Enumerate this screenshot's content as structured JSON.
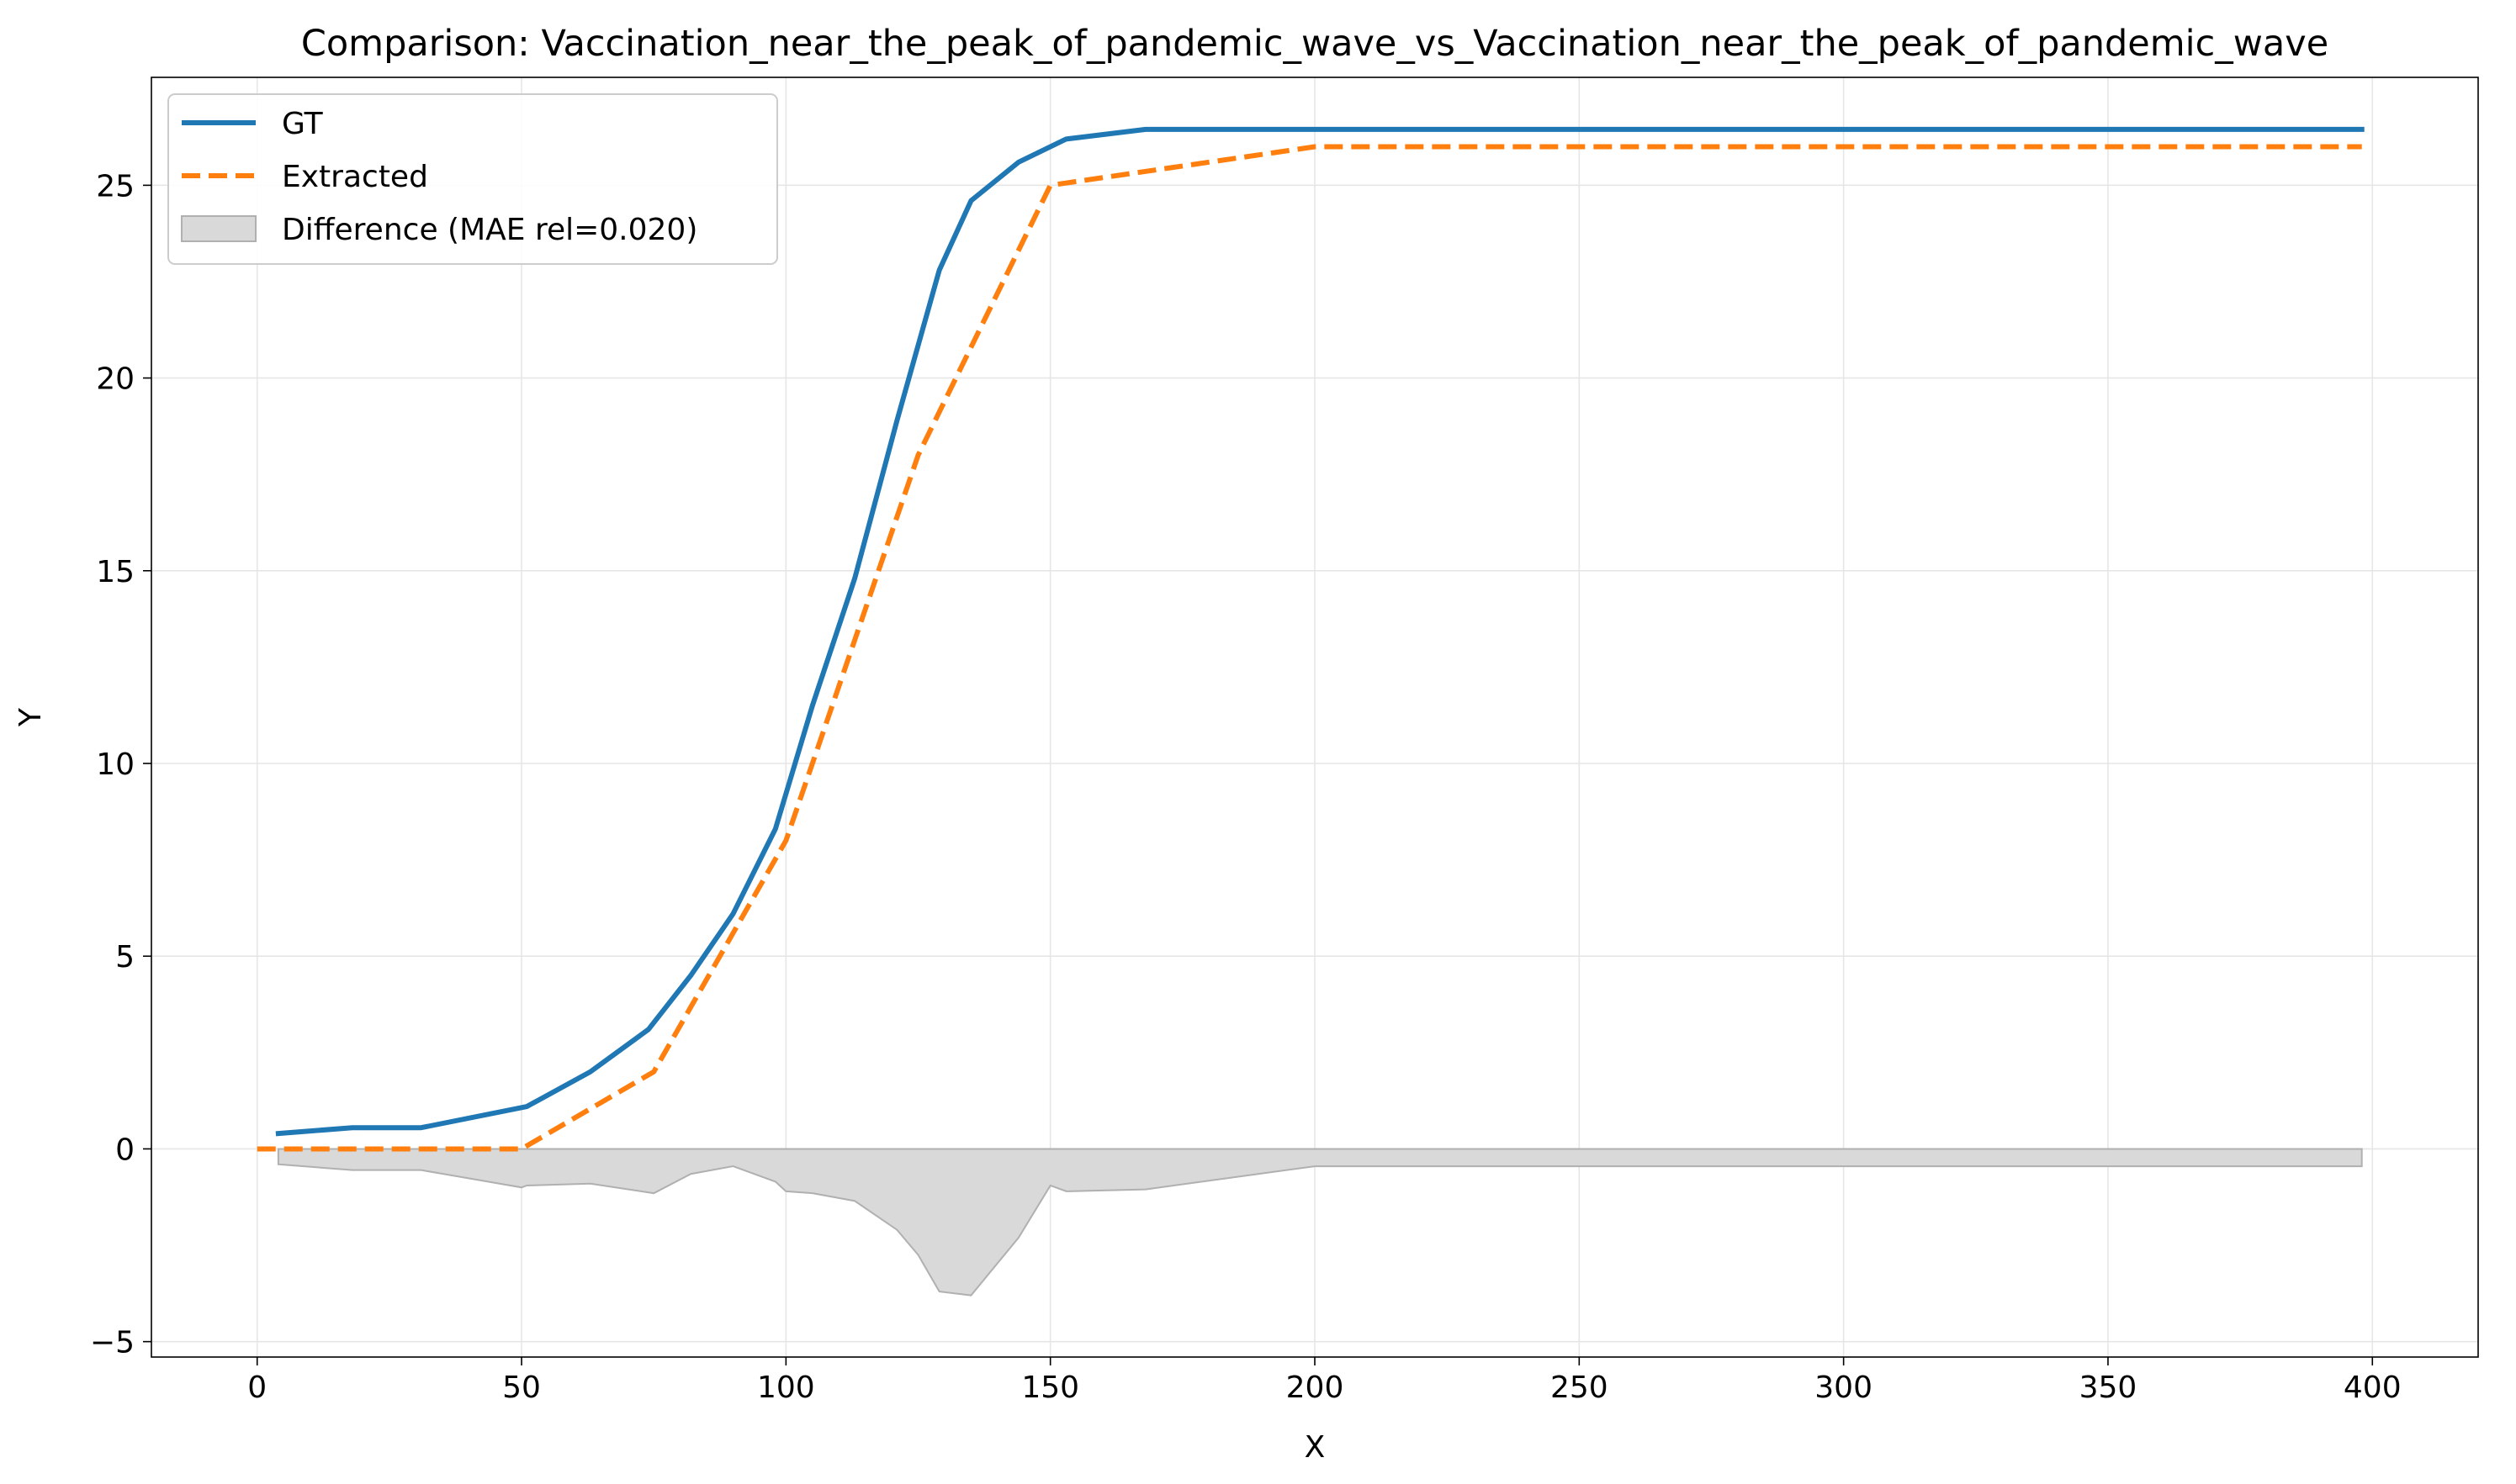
{
  "chart_data": {
    "type": "line",
    "title": "Comparison: Vaccination_near_the_peak_of_pandemic_wave_vs_Vaccination_near_the_peak_of_pandemic_wave",
    "xlabel": "X",
    "ylabel": "Y",
    "xlim": [
      -20,
      420
    ],
    "ylim": [
      -5.4,
      27.8
    ],
    "xticks": [
      0,
      50,
      100,
      150,
      200,
      250,
      300,
      350,
      400
    ],
    "yticks": [
      -5,
      0,
      5,
      10,
      15,
      20,
      25
    ],
    "grid": true,
    "legend_position": "top-left",
    "series": [
      {
        "name": "GT",
        "color": "#1f77b4",
        "style": "solid",
        "x": [
          4,
          18,
          31,
          51,
          63,
          74,
          82,
          90,
          98,
          105,
          113,
          121,
          129,
          135,
          144,
          153,
          168,
          200,
          300,
          398
        ],
        "y": [
          0.4,
          0.55,
          0.55,
          1.1,
          2.0,
          3.1,
          4.5,
          6.1,
          8.3,
          11.5,
          14.8,
          18.9,
          22.8,
          24.6,
          25.6,
          26.2,
          26.45,
          26.45,
          26.45,
          26.45
        ]
      },
      {
        "name": "Extracted",
        "color": "#ff7f0e",
        "style": "dashed",
        "x": [
          0,
          50,
          75,
          100,
          125,
          150,
          200,
          398
        ],
        "y": [
          0.0,
          0.0,
          2.0,
          8.0,
          18.0,
          25.0,
          26.0,
          26.0
        ]
      }
    ],
    "difference": {
      "name": "Difference (MAE rel=0.020)",
      "color": "#d9d9d9",
      "edge_color": "#b0b0b0",
      "x": [
        4,
        18,
        31,
        50,
        51,
        63,
        75,
        82,
        90,
        98,
        100,
        105,
        113,
        121,
        125,
        129,
        135,
        144,
        150,
        153,
        168,
        200,
        300,
        398
      ],
      "y": [
        -0.4,
        -0.55,
        -0.55,
        -1.0,
        -0.95,
        -0.9,
        -1.15,
        -0.65,
        -0.45,
        -0.85,
        -1.1,
        -1.15,
        -1.35,
        -2.1,
        -2.75,
        -3.7,
        -3.8,
        -2.3,
        -0.95,
        -1.1,
        -1.05,
        -0.45,
        -0.45,
        -0.45
      ]
    }
  }
}
